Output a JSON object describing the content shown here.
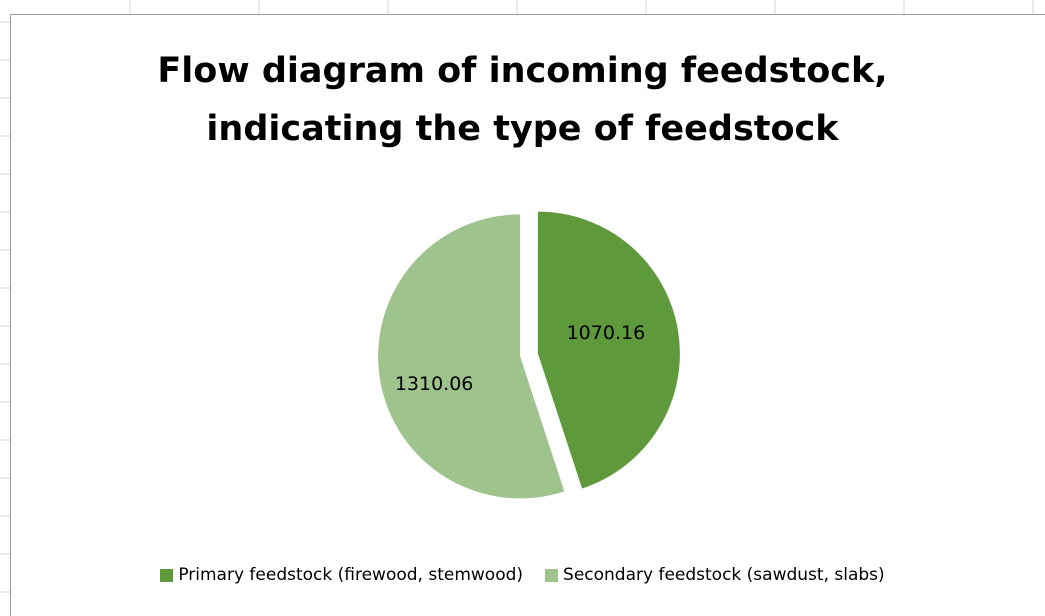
{
  "chart_data": {
    "type": "pie",
    "title": "Flow diagram of incoming feedstock, indicating the type of feedstock",
    "title_lines": [
      "Flow diagram of incoming feedstock,",
      "indicating the type of feedstock"
    ],
    "series": [
      {
        "name": "",
        "categories": [
          "Primary feedstock (firewood, stemwood)",
          "Secondary feedstock (sawdust,  slabs)"
        ],
        "values": [
          1070.16,
          1310.06
        ],
        "labels": [
          "1070.16",
          "1310.06"
        ],
        "colors": [
          "#5e9a3c",
          "#9fc38c"
        ]
      }
    ],
    "exploded": true,
    "legend_position": "bottom"
  }
}
